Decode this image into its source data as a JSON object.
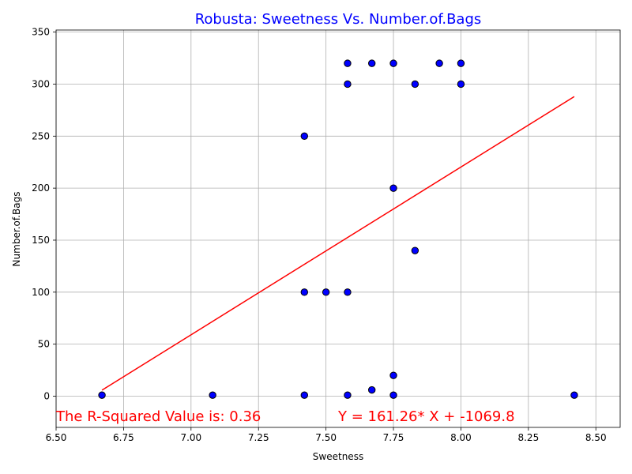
{
  "chart_data": {
    "type": "scatter",
    "title": "Robusta: Sweetness Vs. Number.of.Bags",
    "xlabel": "Sweetness",
    "ylabel": "Number.of.Bags",
    "xlim": [
      6.5,
      8.59
    ],
    "ylim": [
      -30,
      352
    ],
    "xticks": [
      6.5,
      6.75,
      7.0,
      7.25,
      7.5,
      7.75,
      8.0,
      8.25,
      8.5
    ],
    "xtick_labels": [
      "6.50",
      "6.75",
      "7.00",
      "7.25",
      "7.50",
      "7.75",
      "8.00",
      "8.25",
      "8.50"
    ],
    "yticks": [
      0,
      50,
      100,
      150,
      200,
      250,
      300,
      350
    ],
    "ytick_labels": [
      "0",
      "50",
      "100",
      "150",
      "200",
      "250",
      "300",
      "350"
    ],
    "grid": true,
    "colors": {
      "points": "#0000ff",
      "fit": "#ff0000",
      "title": "#0000ff",
      "annotation": "#ff0000"
    },
    "points": [
      {
        "x": 6.67,
        "y": 1
      },
      {
        "x": 7.08,
        "y": 1
      },
      {
        "x": 7.42,
        "y": 1
      },
      {
        "x": 7.42,
        "y": 100
      },
      {
        "x": 7.42,
        "y": 250
      },
      {
        "x": 7.5,
        "y": 100
      },
      {
        "x": 7.58,
        "y": 1
      },
      {
        "x": 7.58,
        "y": 100
      },
      {
        "x": 7.58,
        "y": 300
      },
      {
        "x": 7.58,
        "y": 320
      },
      {
        "x": 7.67,
        "y": 6
      },
      {
        "x": 7.67,
        "y": 320
      },
      {
        "x": 7.75,
        "y": 1
      },
      {
        "x": 7.75,
        "y": 20
      },
      {
        "x": 7.75,
        "y": 200
      },
      {
        "x": 7.75,
        "y": 320
      },
      {
        "x": 7.83,
        "y": 140
      },
      {
        "x": 7.83,
        "y": 300
      },
      {
        "x": 7.92,
        "y": 320
      },
      {
        "x": 8.0,
        "y": 300
      },
      {
        "x": 8.0,
        "y": 320
      },
      {
        "x": 8.42,
        "y": 1
      }
    ],
    "fit_line": {
      "slope": 161.26,
      "intercept": -1069.8,
      "x_range": [
        6.67,
        8.42
      ]
    },
    "annotations": {
      "r_squared": "The R-Squared Value is: 0.36",
      "equation": "Y = 161.26* X + -1069.8"
    }
  }
}
